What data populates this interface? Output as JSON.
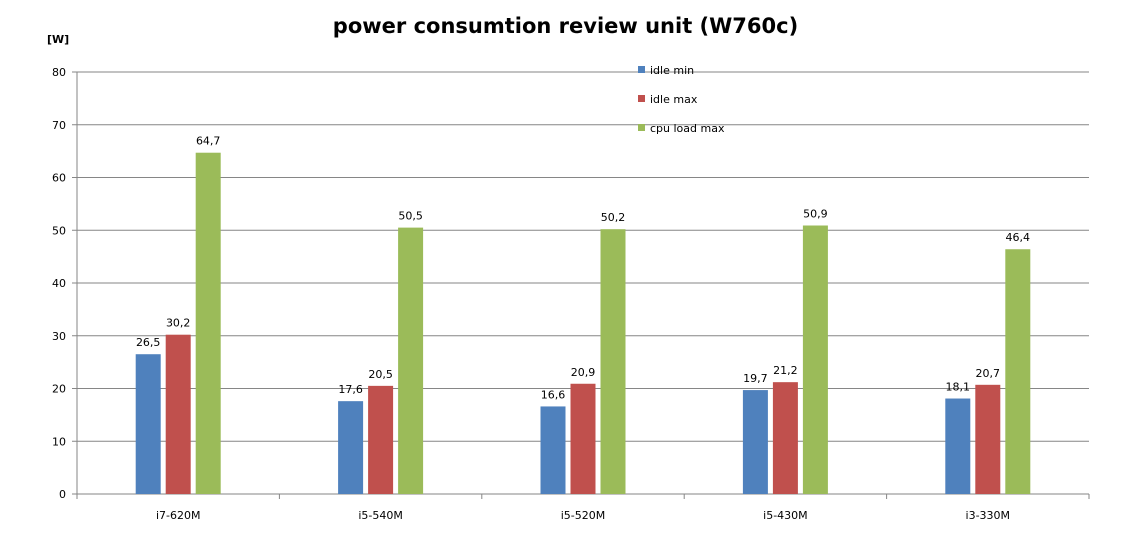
{
  "chart_data": {
    "type": "bar",
    "title": "power consumtion review unit (W760c)",
    "ylabel": "[W]",
    "xlabel": "",
    "ylim": [
      0,
      80
    ],
    "yticks": [
      0,
      10,
      20,
      30,
      40,
      50,
      60,
      70,
      80
    ],
    "grid": true,
    "legend_position": "top-center",
    "categories": [
      "i7-620M",
      "i5-540M",
      "i5-520M",
      "i5-430M",
      "i3-330M"
    ],
    "series": [
      {
        "name": "idle min",
        "color": "#4f81bd",
        "values": [
          26.5,
          17.6,
          16.6,
          19.7,
          18.1
        ],
        "labels": [
          "26,5",
          "17,6",
          "16,6",
          "19,7",
          "18,1"
        ]
      },
      {
        "name": "idle max",
        "color": "#c0504d",
        "values": [
          30.2,
          20.5,
          20.9,
          21.2,
          20.7
        ],
        "labels": [
          "30,2",
          "20,5",
          "20,9",
          "21,2",
          "20,7"
        ]
      },
      {
        "name": "cpu load max",
        "color": "#9bbb59",
        "values": [
          64.7,
          50.5,
          50.2,
          50.9,
          46.4
        ],
        "labels": [
          "64,7",
          "50,5",
          "50,2",
          "50,9",
          "46,4"
        ]
      }
    ]
  }
}
